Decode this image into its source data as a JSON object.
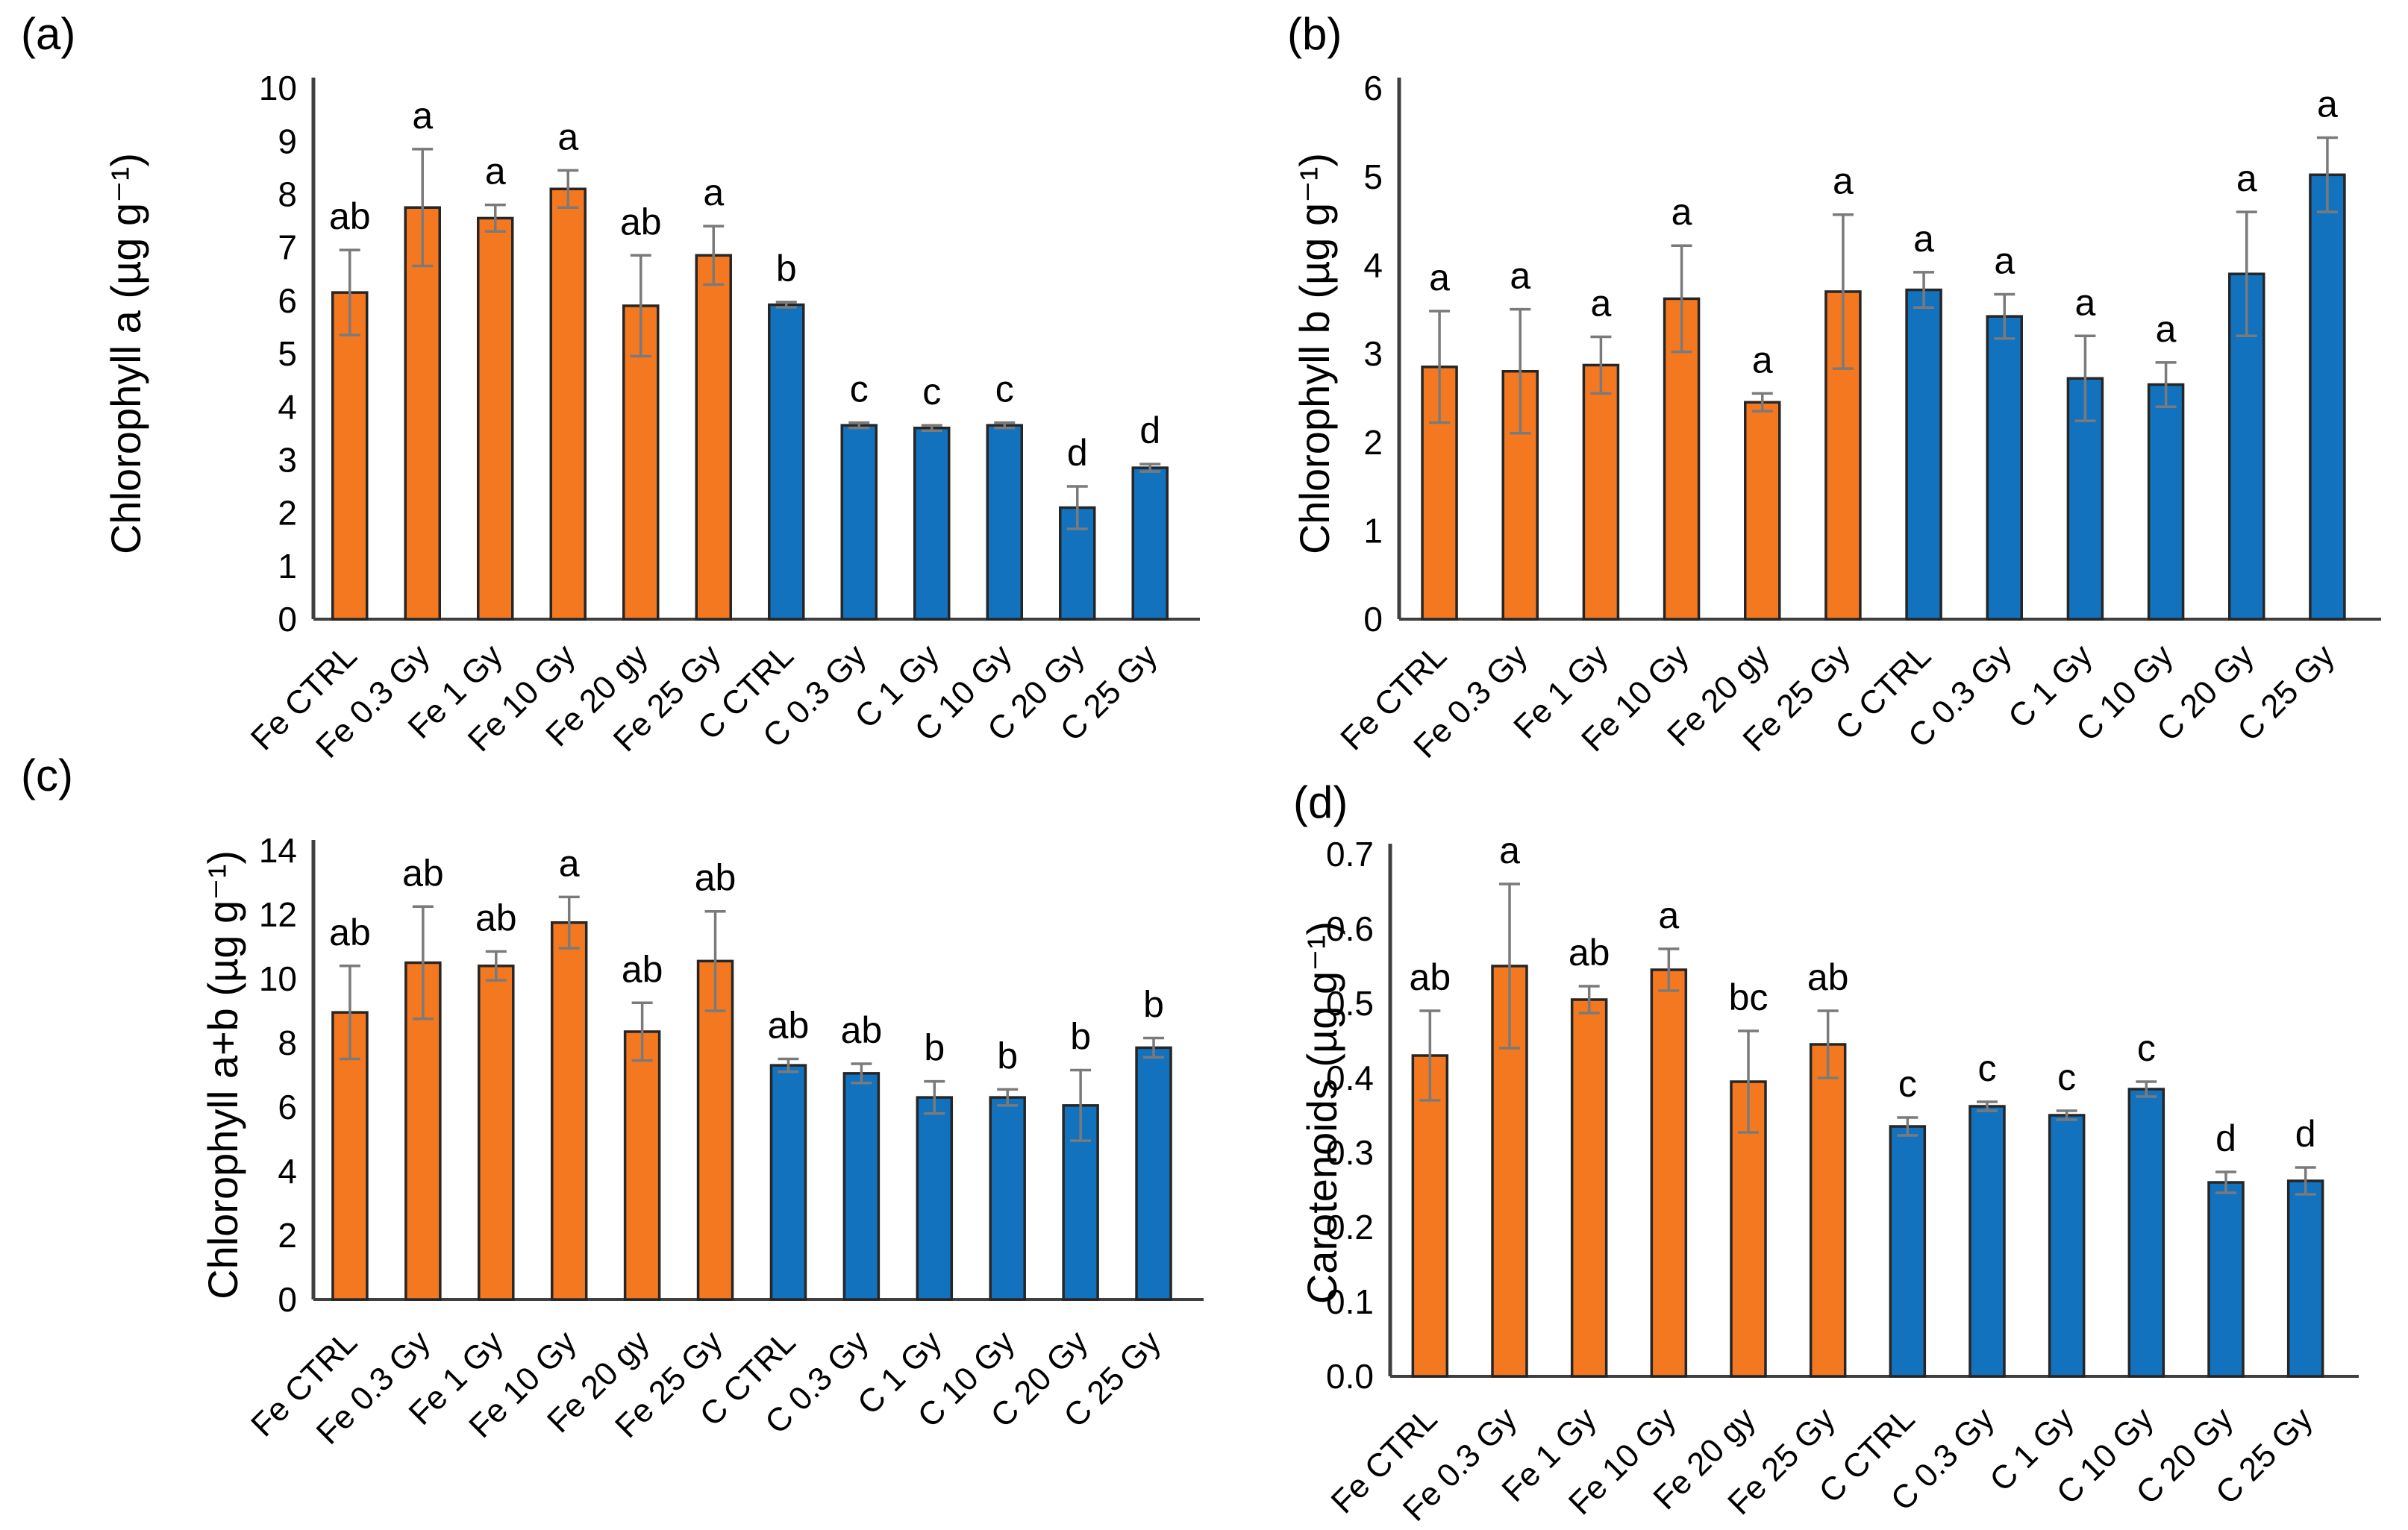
{
  "figure": {
    "background": "#ffffff",
    "description_categories": [
      "Fe CTRL",
      "Fe 0.3 Gy",
      "Fe 1 Gy",
      "Fe 10 Gy",
      "Fe 20 gy",
      "Fe 25 Gy",
      "C CTRL",
      "C 0.3 Gy",
      "C 1 Gy",
      "C 10 Gy",
      "C 20 Gy",
      "C 25 Gy"
    ]
  },
  "colors": {
    "fe_bar": "#F47820",
    "c_bar": "#1272BE",
    "bar_outline": "#262626",
    "error_bar": "#7a7a7a",
    "axis": "#3f3f3f",
    "text": "#000000"
  },
  "chart_data": [
    {
      "type": "bar",
      "panel_label": "(a)",
      "ylabel": "Chlorophyll a (µg g⁻¹)",
      "xlabel": "",
      "ylim": [
        0,
        10
      ],
      "ytick_step": 1,
      "ytick_decimals": 0,
      "grid": false,
      "legend": "none",
      "categories": [
        "Fe CTRL",
        "Fe 0.3 Gy",
        "Fe 1 Gy",
        "Fe 10 Gy",
        "Fe 20 gy",
        "Fe 25 Gy",
        "C CTRL",
        "C 0.3 Gy",
        "C 1 Gy",
        "C 10 Gy",
        "C 20 Gy",
        "C 25 Gy"
      ],
      "groups": [
        "Fe",
        "Fe",
        "Fe",
        "Fe",
        "Fe",
        "Fe",
        "C",
        "C",
        "C",
        "C",
        "C",
        "C"
      ],
      "values": [
        6.15,
        7.75,
        7.55,
        8.1,
        5.9,
        6.85,
        5.92,
        3.65,
        3.6,
        3.65,
        2.1,
        2.85
      ],
      "errors": [
        0.8,
        1.1,
        0.25,
        0.35,
        0.95,
        0.55,
        0.05,
        0.05,
        0.05,
        0.05,
        0.4,
        0.07
      ],
      "letters": [
        "ab",
        "a",
        "a",
        "a",
        "ab",
        "a",
        "b",
        "c",
        "c",
        "c",
        "d",
        "d"
      ]
    },
    {
      "type": "bar",
      "panel_label": "(b)",
      "ylabel": "Chlorophyll b (µg g⁻¹)",
      "xlabel": "",
      "ylim": [
        0,
        6
      ],
      "ytick_step": 1,
      "ytick_decimals": 0,
      "grid": false,
      "legend": "none",
      "categories": [
        "Fe CTRL",
        "Fe 0.3 Gy",
        "Fe 1 Gy",
        "Fe 10 Gy",
        "Fe 20 gy",
        "Fe 25 Gy",
        "C CTRL",
        "C 0.3 Gy",
        "C 1 Gy",
        "C 10 Gy",
        "C 20 Gy",
        "C 25 Gy"
      ],
      "groups": [
        "Fe",
        "Fe",
        "Fe",
        "Fe",
        "Fe",
        "Fe",
        "C",
        "C",
        "C",
        "C",
        "C",
        "C"
      ],
      "values": [
        2.85,
        2.8,
        2.87,
        3.62,
        2.45,
        3.7,
        3.72,
        3.42,
        2.72,
        2.65,
        3.9,
        5.02
      ],
      "errors": [
        0.63,
        0.7,
        0.32,
        0.6,
        0.1,
        0.87,
        0.2,
        0.25,
        0.48,
        0.25,
        0.7,
        0.42
      ],
      "letters": [
        "a",
        "a",
        "a",
        "a",
        "a",
        "a",
        "a",
        "a",
        "a",
        "a",
        "a",
        "a"
      ]
    },
    {
      "type": "bar",
      "panel_label": "(c)",
      "ylabel": "Chlorophyll a+b (µg g⁻¹)",
      "xlabel": "",
      "ylim": [
        0,
        14
      ],
      "ytick_step": 2,
      "ytick_decimals": 0,
      "grid": false,
      "legend": "none",
      "categories": [
        "Fe CTRL",
        "Fe 0.3 Gy",
        "Fe 1 Gy",
        "Fe 10 Gy",
        "Fe 20 gy",
        "Fe 25 Gy",
        "C CTRL",
        "C 0.3 Gy",
        "C 1 Gy",
        "C 10 Gy",
        "C 20 Gy",
        "C 25 Gy"
      ],
      "groups": [
        "Fe",
        "Fe",
        "Fe",
        "Fe",
        "Fe",
        "Fe",
        "C",
        "C",
        "C",
        "C",
        "C",
        "C"
      ],
      "values": [
        8.95,
        10.5,
        10.4,
        11.75,
        8.35,
        10.55,
        7.3,
        7.05,
        6.3,
        6.3,
        6.05,
        7.85
      ],
      "errors": [
        1.45,
        1.75,
        0.45,
        0.8,
        0.9,
        1.55,
        0.2,
        0.3,
        0.5,
        0.25,
        1.1,
        0.3
      ],
      "letters": [
        "ab",
        "ab",
        "ab",
        "a",
        "ab",
        "ab",
        "ab",
        "ab",
        "b",
        "b",
        "b",
        "b"
      ]
    },
    {
      "type": "bar",
      "panel_label": "(d)",
      "ylabel": "Carotenoids (µg g⁻¹)",
      "xlabel": "",
      "ylim": [
        0,
        0.7
      ],
      "ytick_step": 0.1,
      "ytick_decimals": 1,
      "grid": false,
      "legend": "none",
      "categories": [
        "Fe CTRL",
        "Fe 0.3 Gy",
        "Fe 1 Gy",
        "Fe 10 Gy",
        "Fe 20 gy",
        "Fe 25 Gy",
        "C CTRL",
        "C 0.3 Gy",
        "C 1 Gy",
        "C 10 Gy",
        "C 20 Gy",
        "C 25 Gy"
      ],
      "groups": [
        "Fe",
        "Fe",
        "Fe",
        "Fe",
        "Fe",
        "Fe",
        "C",
        "C",
        "C",
        "C",
        "C",
        "C"
      ],
      "values": [
        0.43,
        0.55,
        0.505,
        0.545,
        0.395,
        0.445,
        0.335,
        0.362,
        0.35,
        0.385,
        0.26,
        0.262
      ],
      "errors": [
        0.06,
        0.11,
        0.018,
        0.028,
        0.068,
        0.045,
        0.012,
        0.006,
        0.006,
        0.01,
        0.014,
        0.018
      ],
      "letters": [
        "ab",
        "a",
        "ab",
        "a",
        "bc",
        "ab",
        "c",
        "c",
        "c",
        "c",
        "d",
        "d"
      ]
    }
  ]
}
